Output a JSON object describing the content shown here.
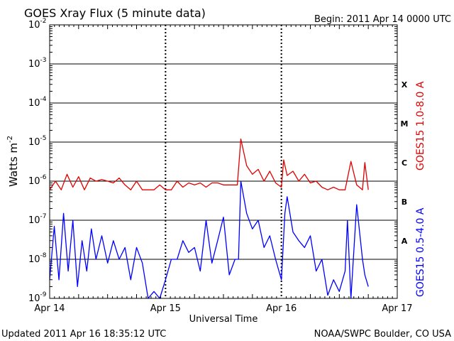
{
  "chart_data": {
    "type": "line",
    "title": "GOES Xray Flux (5 minute data)",
    "begin": "Begin:  2011 Apr 14 0000 UTC",
    "xlabel": "Universal Time",
    "ylabel_base": "Watts m",
    "ylabel_exp": "-2",
    "x_ticks": [
      "Apr 14",
      "Apr 15",
      "Apr 16",
      "Apr 17"
    ],
    "x_range_days": [
      0,
      3
    ],
    "y_scale": "log",
    "ylim": [
      1e-09,
      0.01
    ],
    "y_ticks": [
      {
        "base": "10",
        "exp": "-9",
        "value": 1e-09
      },
      {
        "base": "10",
        "exp": "-8",
        "value": 1e-08
      },
      {
        "base": "10",
        "exp": "-7",
        "value": 1e-07
      },
      {
        "base": "10",
        "exp": "-6",
        "value": 1e-06
      },
      {
        "base": "10",
        "exp": "-5",
        "value": 1e-05
      },
      {
        "base": "10",
        "exp": "-4",
        "value": 0.0001
      },
      {
        "base": "10",
        "exp": "-3",
        "value": 0.001
      },
      {
        "base": "10",
        "exp": "-2",
        "value": 0.01
      }
    ],
    "flare_classes": [
      {
        "label": "A",
        "value": 3e-08
      },
      {
        "label": "B",
        "value": 3e-07
      },
      {
        "label": "C",
        "value": 3e-06
      },
      {
        "label": "M",
        "value": 3e-05
      },
      {
        "label": "X",
        "value": 0.0003
      }
    ],
    "grid": true,
    "legend": "right",
    "series": [
      {
        "name": "GOES15 1.0-8.0 A",
        "color": "#e00000",
        "x": [
          0,
          0.05,
          0.1,
          0.15,
          0.2,
          0.25,
          0.3,
          0.35,
          0.4,
          0.45,
          0.5,
          0.55,
          0.6,
          0.65,
          0.7,
          0.75,
          0.8,
          0.85,
          0.9,
          0.95,
          1.0,
          1.05,
          1.1,
          1.15,
          1.2,
          1.25,
          1.3,
          1.35,
          1.4,
          1.45,
          1.5,
          1.55,
          1.6,
          1.62,
          1.65,
          1.7,
          1.75,
          1.8,
          1.85,
          1.9,
          1.95,
          2.0,
          2.02,
          2.05,
          2.1,
          2.15,
          2.2,
          2.25,
          2.3,
          2.35,
          2.4,
          2.45,
          2.5,
          2.55,
          2.6,
          2.65,
          2.7,
          2.72,
          2.75
        ],
        "y": [
          6e-07,
          1e-06,
          6e-07,
          1.5e-06,
          7e-07,
          1.3e-06,
          6e-07,
          1.2e-06,
          1e-06,
          1.1e-06,
          1e-06,
          9e-07,
          1.2e-06,
          8e-07,
          6e-07,
          1e-06,
          6e-07,
          6e-07,
          6e-07,
          8e-07,
          6e-07,
          6e-07,
          1e-06,
          7e-07,
          9e-07,
          8e-07,
          9e-07,
          7e-07,
          9e-07,
          9e-07,
          8e-07,
          8e-07,
          8e-07,
          8e-07,
          1.2e-05,
          2.5e-06,
          1.5e-06,
          2e-06,
          1e-06,
          1.8e-06,
          9e-07,
          7e-07,
          3.5e-06,
          1.4e-06,
          1.8e-06,
          1e-06,
          1.5e-06,
          9e-07,
          1e-06,
          7e-07,
          6e-07,
          7e-07,
          6e-07,
          6e-07,
          3.2e-06,
          8e-07,
          6e-07,
          3e-06,
          6e-07
        ]
      },
      {
        "name": "GOES15 0.5-4.0 A",
        "color": "#0000ff",
        "x": [
          0,
          0.04,
          0.08,
          0.12,
          0.16,
          0.2,
          0.24,
          0.28,
          0.32,
          0.36,
          0.4,
          0.45,
          0.5,
          0.55,
          0.6,
          0.65,
          0.7,
          0.75,
          0.8,
          0.85,
          0.9,
          0.95,
          1.0,
          1.05,
          1.1,
          1.15,
          1.2,
          1.25,
          1.3,
          1.35,
          1.4,
          1.45,
          1.5,
          1.55,
          1.6,
          1.63,
          1.65,
          1.7,
          1.75,
          1.8,
          1.85,
          1.9,
          1.95,
          2.0,
          2.03,
          2.05,
          2.1,
          2.15,
          2.2,
          2.25,
          2.3,
          2.35,
          2.4,
          2.45,
          2.5,
          2.55,
          2.57,
          2.6,
          2.65,
          2.7,
          2.72,
          2.75
        ],
        "y": [
          3e-09,
          7e-08,
          3e-09,
          1.5e-07,
          5e-09,
          1e-07,
          2e-09,
          3e-08,
          5e-09,
          6e-08,
          1e-08,
          4e-08,
          8e-09,
          3e-08,
          1e-08,
          2e-08,
          3e-09,
          2e-08,
          8e-09,
          1e-09,
          1.5e-09,
          1e-09,
          3e-09,
          1e-08,
          1e-08,
          3e-08,
          1.5e-08,
          2e-08,
          5e-09,
          1e-07,
          8e-09,
          3e-08,
          1.2e-07,
          4e-09,
          1e-08,
          1e-08,
          1e-06,
          1.5e-07,
          6e-08,
          1e-07,
          2e-08,
          4e-08,
          1e-08,
          3e-09,
          1.5e-07,
          4e-07,
          5e-08,
          3e-08,
          2e-08,
          4e-08,
          5e-09,
          1e-08,
          1.2e-09,
          3e-09,
          1.5e-09,
          5e-09,
          1e-07,
          1e-09,
          2.5e-07,
          1e-08,
          4e-09,
          2e-09
        ]
      }
    ]
  },
  "footer": {
    "updated": "Updated 2011 Apr 16 18:35:12 UTC",
    "source": "NOAA/SWPC Boulder, CO USA"
  }
}
